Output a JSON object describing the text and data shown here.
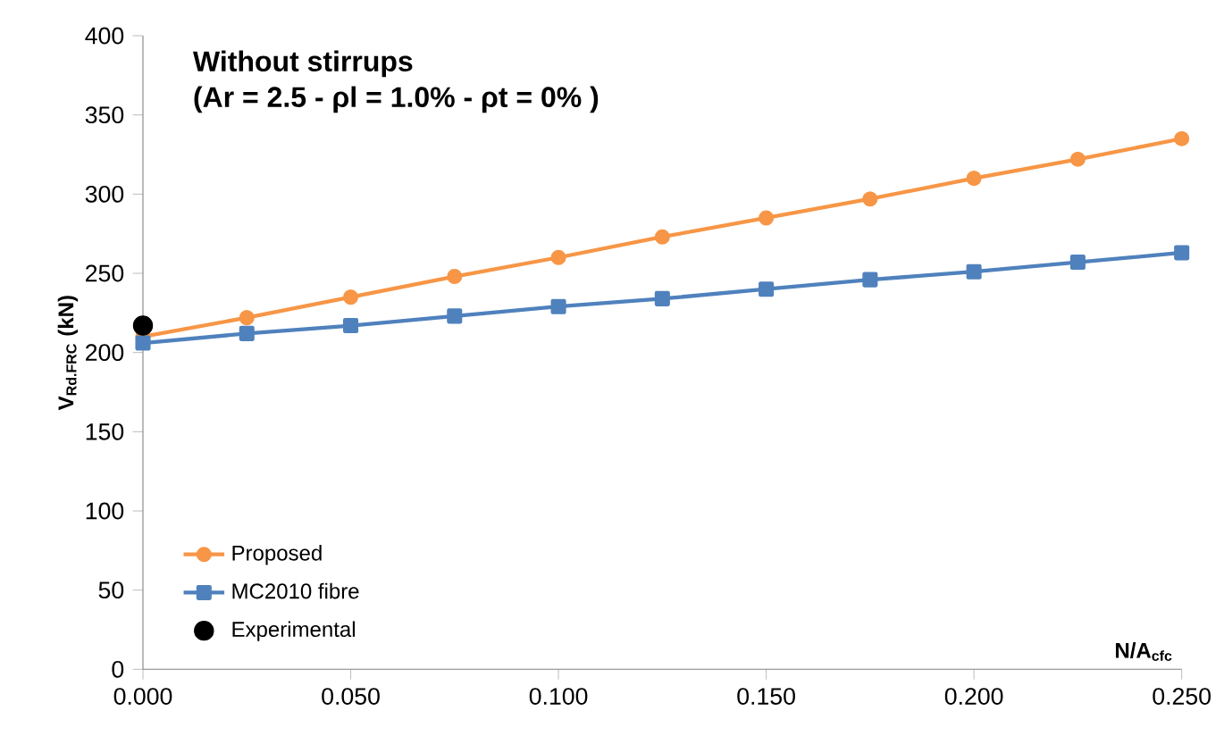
{
  "chart_data": {
    "type": "line",
    "title": "Without stirrups",
    "subtitle": "(Ar =  2.5 - ρl = 1.0%  - ρt = 0% )",
    "xlabel": "N/A$_{cfc}$",
    "ylabel": "V$_{Rd.FRC}$ (kN)",
    "x": [
      0,
      0.025,
      0.05,
      0.075,
      0.1,
      0.125,
      0.15,
      0.175,
      0.2,
      0.225,
      0.25
    ],
    "series": [
      {
        "name": "Proposed",
        "color": "#f79646",
        "marker": "circle",
        "values": [
          210,
          222,
          235,
          248,
          260,
          273,
          285,
          297,
          310,
          322,
          335
        ]
      },
      {
        "name": "MC2010 fibre",
        "color": "#4f81bd",
        "marker": "square",
        "values": [
          206,
          212,
          217,
          223,
          229,
          234,
          240,
          246,
          251,
          257,
          263
        ]
      },
      {
        "name": "Experimental",
        "type": "scatter",
        "color": "#000000",
        "marker": "circle",
        "x": [
          0
        ],
        "values": [
          217
        ]
      }
    ],
    "xlim": [
      0,
      0.25
    ],
    "ylim": [
      0,
      400
    ],
    "xticks": [
      {
        "value": 0,
        "label": "0.000"
      },
      {
        "value": 0.05,
        "label": "0.050"
      },
      {
        "value": 0.1,
        "label": "0.100"
      },
      {
        "value": 0.15,
        "label": "0.150"
      },
      {
        "value": 0.2,
        "label": "0.200"
      },
      {
        "value": 0.25,
        "label": "0.250"
      }
    ],
    "yticks": [
      0,
      50,
      100,
      150,
      200,
      250,
      300,
      350,
      400
    ],
    "grid": false,
    "legend": "bottom left"
  }
}
